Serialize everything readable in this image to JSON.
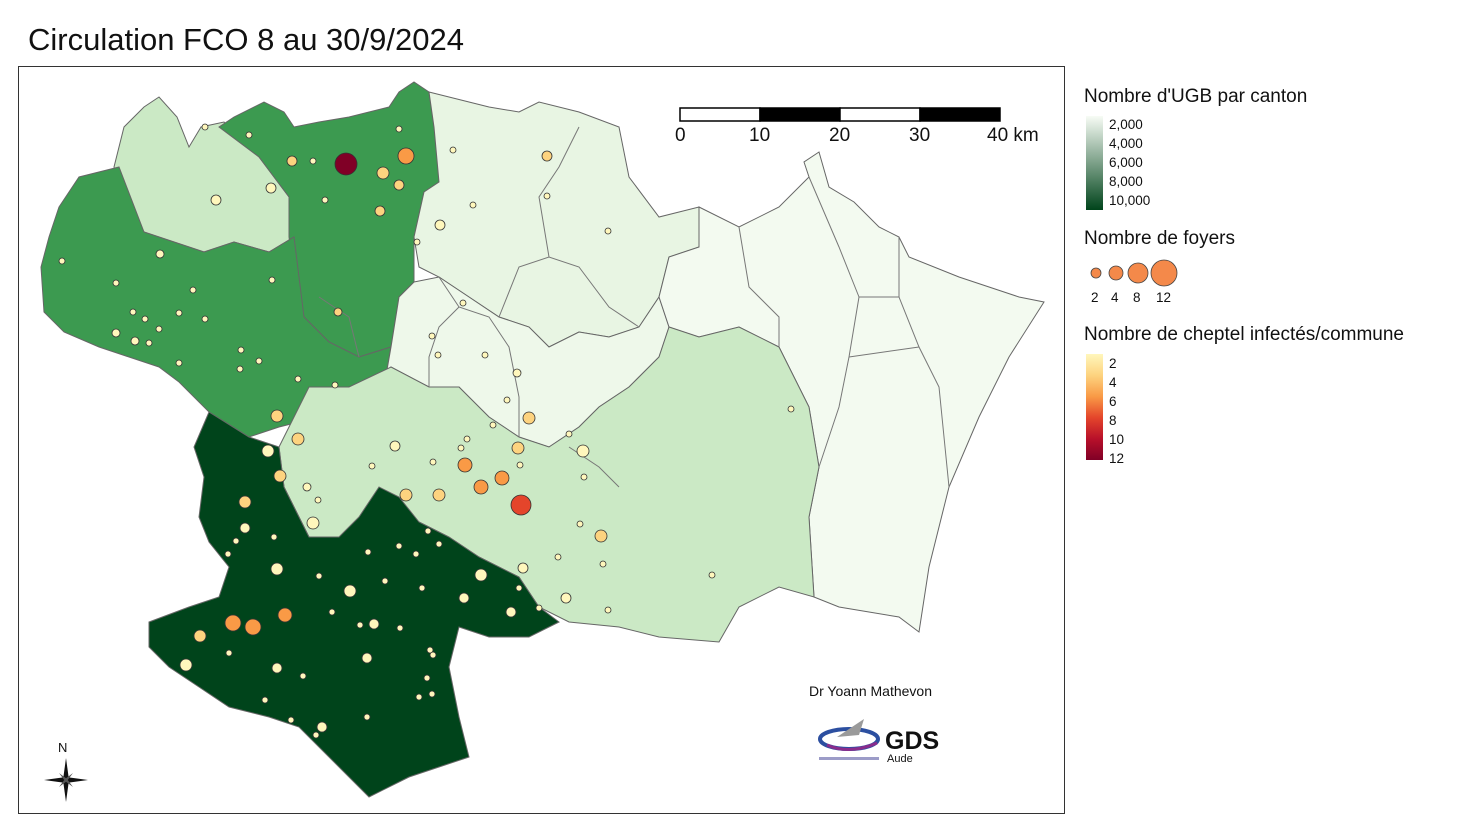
{
  "title": "Circulation FCO 8 au 30/9/2024",
  "map": {
    "author": "Dr Yoann Mathevon",
    "logo": {
      "name": "GDS",
      "sub": "Aude"
    },
    "north_label": "N",
    "scale_bar": {
      "labels": [
        "0",
        "10",
        "20",
        "30",
        "40 km"
      ]
    },
    "colors": {
      "very_light": "#f3faf0",
      "light": "#cbe9c5",
      "medium": "#3c9a50",
      "dark": "#00441b",
      "border": "#666666"
    }
  },
  "legend": {
    "ugb": {
      "title": "Nombre d'UGB par canton",
      "labels": [
        "2,000",
        "4,000",
        "6,000",
        "8,000",
        "10,000"
      ],
      "color_from": "#f7fcf5",
      "color_to": "#00441b"
    },
    "foyers": {
      "title": "Nombre de foyers",
      "labels": [
        "2",
        "4",
        "8",
        "12"
      ],
      "color": "#f4894a"
    },
    "cheptel": {
      "title": "Nombre de cheptel infectés/commune",
      "labels": [
        "2",
        "4",
        "6",
        "8",
        "10",
        "12"
      ],
      "colors": [
        "#fff7bc",
        "#fdd37f",
        "#f99a46",
        "#e4452b",
        "#b8102a",
        "#800026"
      ]
    }
  }
}
